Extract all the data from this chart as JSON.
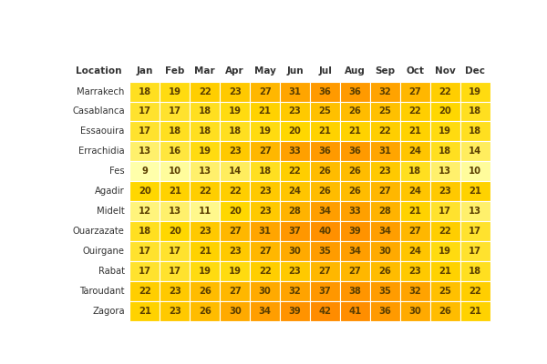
{
  "months": [
    "Jan",
    "Feb",
    "Mar",
    "Apr",
    "May",
    "Jun",
    "Jul",
    "Aug",
    "Sep",
    "Oct",
    "Nov",
    "Dec"
  ],
  "cities": [
    "Marrakech",
    "Casablanca",
    "Essaouira",
    "Errachidia",
    "Fes",
    "Agadir",
    "Midelt",
    "Ouarzazate",
    "Ouirgane",
    "Rabat",
    "Taroudant",
    "Zagora"
  ],
  "values": [
    [
      18,
      19,
      22,
      23,
      27,
      31,
      36,
      36,
      32,
      27,
      22,
      19
    ],
    [
      17,
      17,
      18,
      19,
      21,
      23,
      25,
      26,
      25,
      22,
      20,
      18
    ],
    [
      17,
      18,
      18,
      18,
      19,
      20,
      21,
      21,
      22,
      21,
      19,
      18
    ],
    [
      13,
      16,
      19,
      23,
      27,
      33,
      36,
      36,
      31,
      24,
      18,
      14
    ],
    [
      9,
      10,
      13,
      14,
      18,
      22,
      26,
      26,
      23,
      18,
      13,
      10
    ],
    [
      20,
      21,
      22,
      22,
      23,
      24,
      26,
      26,
      27,
      24,
      23,
      21
    ],
    [
      12,
      13,
      11,
      20,
      23,
      28,
      34,
      33,
      28,
      21,
      17,
      13
    ],
    [
      18,
      20,
      23,
      27,
      31,
      37,
      40,
      39,
      34,
      27,
      22,
      17
    ],
    [
      17,
      17,
      21,
      23,
      27,
      30,
      35,
      34,
      30,
      24,
      19,
      17
    ],
    [
      17,
      17,
      19,
      19,
      22,
      23,
      27,
      27,
      26,
      23,
      21,
      18
    ],
    [
      22,
      23,
      26,
      27,
      30,
      32,
      37,
      38,
      35,
      32,
      25,
      22
    ],
    [
      21,
      23,
      26,
      30,
      34,
      39,
      42,
      41,
      36,
      30,
      26,
      21
    ]
  ],
  "background_color": "#ffffff",
  "text_color": "#5a3e00",
  "vmin": 9,
  "vmax": 42,
  "color_low": "#ffffaa",
  "color_mid1": "#ffd700",
  "color_mid2": "#ffa500",
  "color_high": "#ff8c00",
  "header_fontsize": 7.5,
  "cell_fontsize": 7.2,
  "city_fontsize": 7.2
}
